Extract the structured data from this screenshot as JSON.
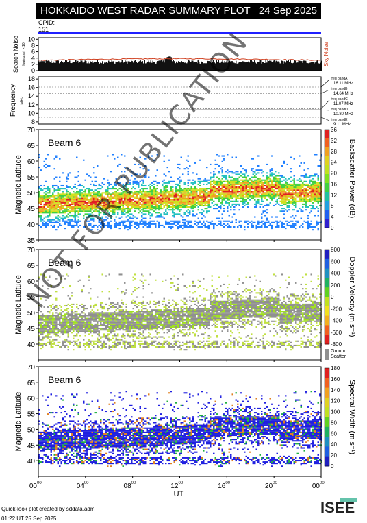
{
  "header": {
    "title": "HOKKAIDO WEST RADAR SUMMARY PLOT",
    "date": "24 Sep 2025"
  },
  "cpid": {
    "label": "CPID:",
    "value": "151"
  },
  "footer": {
    "credit": "Quick-look plot created by sddata.adm",
    "timestamp": "01:22 UT 25 Sep 2025"
  },
  "logo": {
    "text": "ISEE"
  },
  "watermark": "NOT FOR PUBLICATION",
  "colors": {
    "cpid_bar": "#2020ff",
    "noise_line": "#d04020",
    "sky_noise_label": "#d04020"
  },
  "chart_data": [
    {
      "type": "area",
      "panel": "noise",
      "ylabel": "Search Noise",
      "ylabel_sub": "log(noise) × 10",
      "right_label": "Sky Noise",
      "yticks": [
        0,
        2,
        4,
        6,
        8,
        10
      ],
      "ylim": [
        0,
        10.5
      ],
      "search_noise_level": 2.2,
      "sky_noise_level": 3.3
    },
    {
      "type": "line",
      "panel": "frequency",
      "ylabel": "Frequency",
      "yunit": "MHz",
      "yticks": [
        8,
        10,
        12,
        14,
        16,
        18
      ],
      "ylim": [
        7.5,
        18.5
      ],
      "bands": [
        {
          "label": "freq bandA",
          "value": "16.11 MHz",
          "freq": 16.11
        },
        {
          "label": "freq bandB",
          "value": "14.64 MHz",
          "freq": 14.64
        },
        {
          "label": "freq bandC",
          "value": "11.07 MHz",
          "freq": 11.07
        },
        {
          "label": "freq bandD",
          "value": "10.80 MHz",
          "freq": 10.8
        },
        {
          "label": "freq bandE",
          "value": "9.11 MHz",
          "freq": 9.11
        }
      ],
      "operating_freq": 10.8
    },
    {
      "type": "heatmap",
      "panel": "power",
      "beam": "Beam  6",
      "ylabel": "Magnetic Latitude",
      "yticks": [
        35,
        40,
        45,
        50,
        55,
        60,
        65,
        70
      ],
      "ylim": [
        35,
        70
      ],
      "colorbar_label": "Backscatter Power (dB)",
      "colorbar_ticks": [
        0,
        4,
        8,
        12,
        16,
        20,
        24,
        28,
        32,
        36
      ],
      "colorbar_range": [
        0,
        36
      ]
    },
    {
      "type": "heatmap",
      "panel": "velocity",
      "beam": "Beam  6",
      "ylabel": "Magnetic Latitude",
      "yticks": [
        40,
        45,
        50,
        55,
        60,
        65,
        70
      ],
      "ylim": [
        35,
        70
      ],
      "colorbar_label": "Doppler Velocity (m s⁻¹)",
      "colorbar_ticks": [
        800,
        600,
        400,
        200,
        0,
        -200,
        -400,
        -600,
        -800
      ],
      "colorbar_range": [
        -800,
        800
      ],
      "ground_scatter_label": "Ground Scatter"
    },
    {
      "type": "heatmap",
      "panel": "width",
      "beam": "Beam  6",
      "ylabel": "Magnetic Latitude",
      "yticks": [
        40,
        45,
        50,
        55,
        60,
        65,
        70
      ],
      "ylim": [
        35,
        70
      ],
      "colorbar_label": "Spectral Width (m s⁻¹)",
      "colorbar_ticks": [
        180,
        160,
        140,
        120,
        100,
        80,
        60,
        40,
        20,
        0
      ],
      "colorbar_range": [
        0,
        180
      ]
    }
  ],
  "time_axis": {
    "label": "UT",
    "ticks": [
      {
        "h": "00",
        "m": "00",
        "hour": 0
      },
      {
        "h": "04",
        "m": "00",
        "hour": 4
      },
      {
        "h": "08",
        "m": "00",
        "hour": 8
      },
      {
        "h": "12",
        "m": "00",
        "hour": 12
      },
      {
        "h": "16",
        "m": "00",
        "hour": 16
      },
      {
        "h": "20",
        "m": "00",
        "hour": 20
      },
      {
        "h": "00",
        "m": "00",
        "hour": 24
      }
    ]
  }
}
